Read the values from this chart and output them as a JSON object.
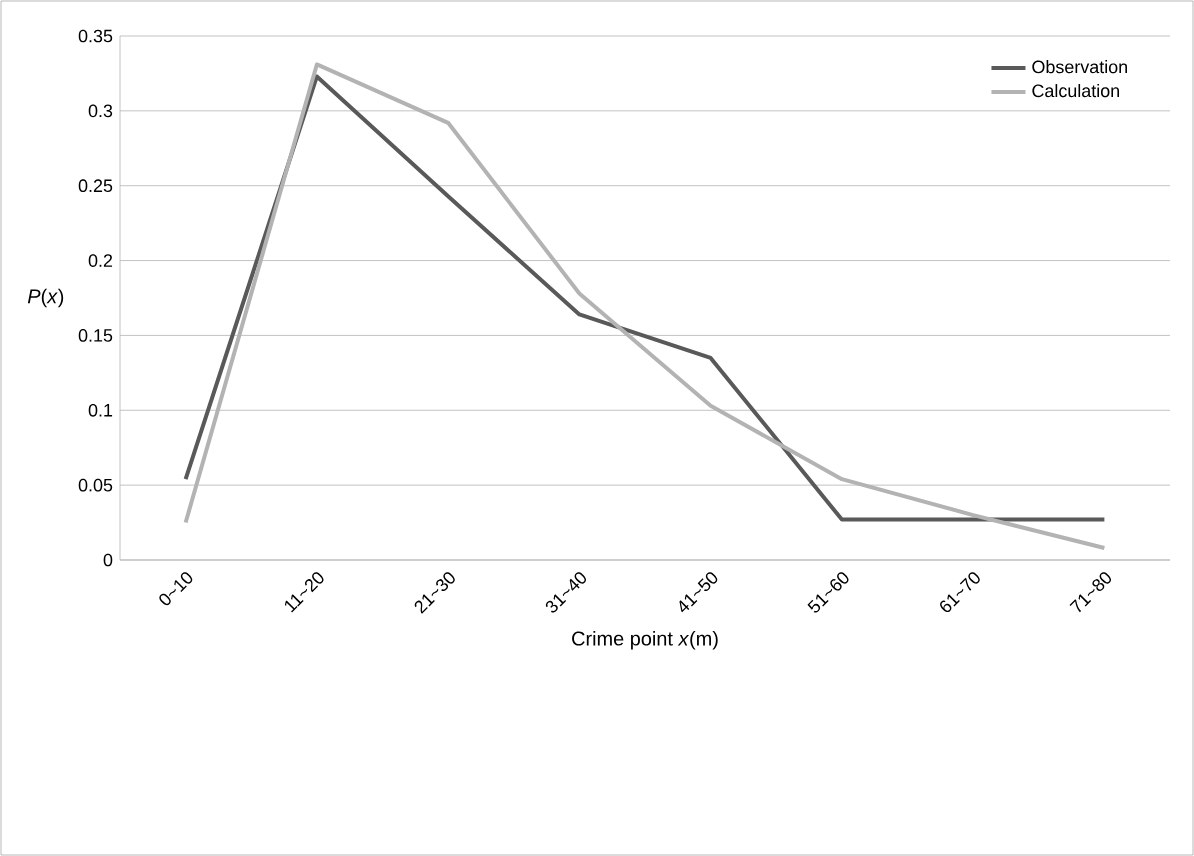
{
  "chart_data": {
    "type": "line",
    "xlabel": "Crime point *x*(m)",
    "ylabel": "*P*(*x*)",
    "categories": [
      "0~10",
      "11~20",
      "21~30",
      "31~40",
      "41~50",
      "51~60",
      "61~70",
      "71~80"
    ],
    "series": [
      {
        "name": "Observation",
        "color": "#595959",
        "values": [
          0.054,
          0.323,
          0.243,
          0.164,
          0.135,
          0.027,
          0.027,
          0.027
        ]
      },
      {
        "name": "Calculation",
        "color": "#b3b3b3",
        "values": [
          0.025,
          0.331,
          0.292,
          0.178,
          0.103,
          0.054,
          0.03,
          0.008
        ]
      }
    ],
    "ylim": [
      0,
      0.35
    ],
    "yticks": [
      0,
      0.05,
      0.1,
      0.15,
      0.2,
      0.25,
      0.3,
      0.35
    ],
    "grid": "y",
    "legend": "top right",
    "marker": "none",
    "line_style": "solid"
  }
}
